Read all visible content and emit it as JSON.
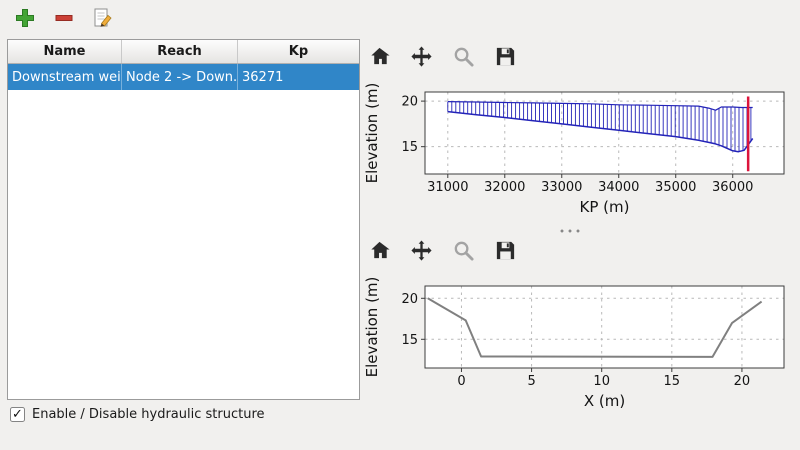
{
  "window": {
    "background": "#f1f0ee",
    "selection_color": "#3086c8"
  },
  "main_toolbar": {
    "icons": [
      "plus-icon",
      "minus-icon",
      "edit-icon"
    ],
    "plus_color": "#43a435",
    "minus_color": "#cc4036",
    "pencil_color": "#f0ad3c"
  },
  "structures_table": {
    "columns": [
      "Name",
      "Reach",
      "Kp"
    ],
    "rows": [
      {
        "name": "Downstream weir",
        "reach": "Node 2 -> Down...",
        "kp": "36271",
        "selected": true
      }
    ]
  },
  "enable_checkbox": {
    "label": "Enable / Disable hydraulic structure",
    "checked": true,
    "check_glyph": "✓"
  },
  "chart_toolbar_icons": [
    "home-icon",
    "pan-icon",
    "zoom-icon",
    "save-icon"
  ],
  "chart_data": [
    {
      "type": "area",
      "title": "",
      "xlabel": "KP (m)",
      "ylabel": "Elevation (m)",
      "xlim": [
        30600,
        36900
      ],
      "ylim": [
        12,
        21
      ],
      "xticks": [
        31000,
        32000,
        33000,
        34000,
        35000,
        36000
      ],
      "yticks": [
        15,
        20
      ],
      "grid": true,
      "legend": "none",
      "series": [
        {
          "name": "top",
          "color": "#2323b8",
          "width": 1.2,
          "x": [
            31000,
            31500,
            32000,
            32500,
            33000,
            33500,
            34000,
            34500,
            35000,
            35400,
            35600,
            35700,
            35800,
            36000,
            36150,
            36350
          ],
          "y": [
            19.95,
            19.9,
            19.85,
            19.8,
            19.75,
            19.7,
            19.6,
            19.55,
            19.5,
            19.45,
            19.2,
            19.0,
            19.35,
            19.35,
            19.3,
            19.3
          ]
        },
        {
          "name": "bottom",
          "color": "#2323b8",
          "width": 1.5,
          "x": [
            31000,
            31500,
            32000,
            32500,
            33000,
            33500,
            34000,
            34500,
            35000,
            35400,
            35600,
            35700,
            35800,
            36000,
            36100,
            36200,
            36350
          ],
          "y": [
            18.85,
            18.5,
            18.2,
            17.85,
            17.5,
            17.15,
            16.8,
            16.45,
            16.1,
            15.7,
            15.45,
            15.3,
            15.1,
            14.55,
            14.45,
            14.6,
            15.9
          ]
        }
      ],
      "hatch": {
        "color": "#2323b8",
        "x0": 31000,
        "x1": 36350,
        "step": 70
      },
      "marker_line": {
        "x": 36271,
        "y0": 12.3,
        "y1": 20.5,
        "color": "#dc143c",
        "width": 2.5
      }
    },
    {
      "type": "line",
      "title": "",
      "xlabel": "X (m)",
      "ylabel": "Elevation (m)",
      "xlim": [
        -2.6,
        23.0
      ],
      "ylim": [
        11.5,
        21.5
      ],
      "xticks": [
        0,
        5,
        10,
        15,
        20
      ],
      "yticks": [
        15,
        20
      ],
      "grid": true,
      "legend": "none",
      "series": [
        {
          "name": "cross_section",
          "color": "#808080",
          "width": 2,
          "x": [
            -2.4,
            -1.9,
            0.3,
            1.4,
            17.9,
            19.3,
            21.4
          ],
          "y": [
            20.0,
            19.5,
            17.3,
            12.9,
            12.85,
            17.0,
            19.6
          ]
        }
      ]
    }
  ]
}
